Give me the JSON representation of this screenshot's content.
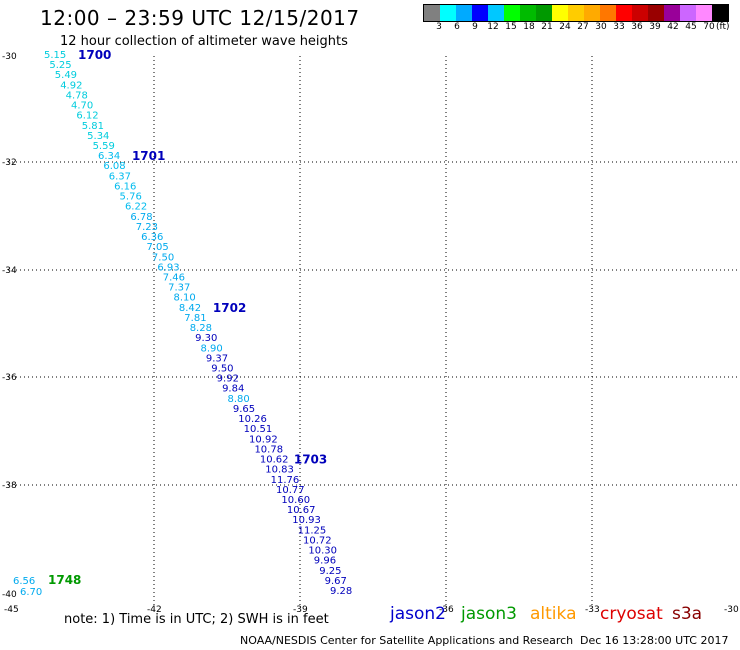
{
  "header": {
    "title": "12:00 – 23:59 UTC 12/15/2017",
    "subtitle": "12 hour collection of altimeter wave heights"
  },
  "colorbar": {
    "colors": [
      "#808080",
      "#00ffff",
      "#00aaff",
      "#0000ff",
      "#00c8ff",
      "#00ff00",
      "#00bb00",
      "#009900",
      "#ffff00",
      "#ffcc00",
      "#ffaa00",
      "#ff7700",
      "#ff0000",
      "#cc0000",
      "#990000",
      "#990099",
      "#cc66ff",
      "#ff88ff",
      "#000000"
    ],
    "labels": [
      "3",
      "6",
      "9",
      "12",
      "15",
      "18",
      "21",
      "24",
      "27",
      "30",
      "33",
      "36",
      "39",
      "42",
      "45",
      "70"
    ],
    "unit": "(ft)"
  },
  "map": {
    "lat_labels": [
      "-30",
      "-32",
      "-34",
      "-36",
      "-38",
      "-40"
    ],
    "lon_labels": [
      "-45",
      "-42",
      "-39",
      "-36",
      "-33",
      "-30"
    ]
  },
  "track": [
    {
      "v": "5.15",
      "c": "#00ccdd"
    },
    {
      "v": "5.25",
      "c": "#00ccdd"
    },
    {
      "v": "5.49",
      "c": "#00ccdd"
    },
    {
      "v": "4.92",
      "c": "#00ccdd"
    },
    {
      "v": "4.78",
      "c": "#00ccdd"
    },
    {
      "v": "4.70",
      "c": "#00ccdd"
    },
    {
      "v": "6.12",
      "c": "#00ccdd"
    },
    {
      "v": "5.81",
      "c": "#00ccdd"
    },
    {
      "v": "5.34",
      "c": "#00ccdd"
    },
    {
      "v": "5.59",
      "c": "#00ccdd"
    },
    {
      "v": "6.34",
      "c": "#00bbee"
    },
    {
      "v": "6.08",
      "c": "#00bbee"
    },
    {
      "v": "6.37",
      "c": "#00bbee"
    },
    {
      "v": "6.16",
      "c": "#00bbee"
    },
    {
      "v": "5.76",
      "c": "#00bbee"
    },
    {
      "v": "6.22",
      "c": "#00bbee"
    },
    {
      "v": "6.78",
      "c": "#00aaee"
    },
    {
      "v": "7.23",
      "c": "#00aaee"
    },
    {
      "v": "6.36",
      "c": "#00aaee"
    },
    {
      "v": "7.05",
      "c": "#00aaee"
    },
    {
      "v": "7.50",
      "c": "#00aaee"
    },
    {
      "v": "6.93",
      "c": "#00aaee"
    },
    {
      "v": "7.46",
      "c": "#00aaee"
    },
    {
      "v": "7.37",
      "c": "#00aaee"
    },
    {
      "v": "8.10",
      "c": "#00aaee"
    },
    {
      "v": "8.42",
      "c": "#00aaee"
    },
    {
      "v": "7.81",
      "c": "#00aaee"
    },
    {
      "v": "8.28",
      "c": "#00aaee"
    },
    {
      "v": "9.30",
      "c": "#0000bb"
    },
    {
      "v": "8.90",
      "c": "#00aaee"
    },
    {
      "v": "9.37",
      "c": "#0000bb"
    },
    {
      "v": "9.50",
      "c": "#0000bb"
    },
    {
      "v": "9.92",
      "c": "#0000bb"
    },
    {
      "v": "9.84",
      "c": "#0000bb"
    },
    {
      "v": "8.80",
      "c": "#00aaee"
    },
    {
      "v": "9.65",
      "c": "#0000bb"
    },
    {
      "v": "10.26",
      "c": "#0000bb"
    },
    {
      "v": "10.51",
      "c": "#0000bb"
    },
    {
      "v": "10.92",
      "c": "#0000bb"
    },
    {
      "v": "10.78",
      "c": "#0000bb"
    },
    {
      "v": "10.62",
      "c": "#0000bb"
    },
    {
      "v": "10.83",
      "c": "#0000bb"
    },
    {
      "v": "11.76",
      "c": "#0000bb"
    },
    {
      "v": "10.77",
      "c": "#0000bb"
    },
    {
      "v": "10.60",
      "c": "#0000bb"
    },
    {
      "v": "10.67",
      "c": "#0000bb"
    },
    {
      "v": "10.93",
      "c": "#0000bb"
    },
    {
      "v": "11.25",
      "c": "#0000bb"
    },
    {
      "v": "10.72",
      "c": "#0000bb"
    },
    {
      "v": "10.30",
      "c": "#0000bb"
    },
    {
      "v": "9.96",
      "c": "#0000bb"
    },
    {
      "v": "9.25",
      "c": "#0000bb"
    },
    {
      "v": "9.67",
      "c": "#0000bb"
    },
    {
      "v": "9.28",
      "c": "#0000bb"
    }
  ],
  "time_labels": [
    {
      "text": "1700",
      "c": "#0000bb",
      "after": 0
    },
    {
      "text": "1701",
      "c": "#0000bb",
      "after": 10
    },
    {
      "text": "1702",
      "c": "#0000bb",
      "after": 25
    },
    {
      "text": "1703",
      "c": "#0000bb",
      "after": 40
    }
  ],
  "jason3_points": [
    {
      "v": "6.56",
      "c": "#00aaee"
    },
    {
      "v": "6.70",
      "c": "#00aaee"
    }
  ],
  "jason3_time": {
    "text": "1748",
    "c": "#009900"
  },
  "note": "note:  1) Time is in UTC;  2) SWH is in feet",
  "satellites": [
    {
      "name": "jason2",
      "color": "#0000cc"
    },
    {
      "name": "jason3",
      "color": "#009900"
    },
    {
      "name": "altika",
      "color": "#ff9900"
    },
    {
      "name": "cryosat",
      "color": "#dd0000"
    },
    {
      "name": "s3a",
      "color": "#880000"
    }
  ],
  "footer": {
    "left": "NOAA/NESDIS Center for Satellite Applications and Research",
    "right": "Dec 16 13:28:00 UTC 2017"
  }
}
